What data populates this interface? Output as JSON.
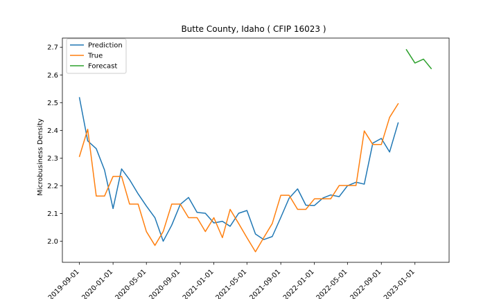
{
  "chart_data": {
    "type": "line",
    "title": "Butte County, Idaho ( CFIP 16023 )",
    "xlabel": "",
    "ylabel": "Microbusiness Density",
    "xlim": [
      "2019-07-01",
      "2023-05-05"
    ],
    "ylim": [
      1.924,
      2.733
    ],
    "x_ticks": [
      "2019-09-01",
      "2020-01-01",
      "2020-05-01",
      "2020-09-01",
      "2021-01-01",
      "2021-05-01",
      "2021-09-01",
      "2022-01-01",
      "2022-05-01",
      "2022-09-01",
      "2023-01-01"
    ],
    "y_ticks": [
      2.0,
      2.1,
      2.2,
      2.3,
      2.4,
      2.5,
      2.6,
      2.7
    ],
    "y_tick_labels": [
      "2.0",
      "2.1",
      "2.2",
      "2.3",
      "2.4",
      "2.5",
      "2.6",
      "2.7"
    ],
    "grid": false,
    "legend_position": "top-left",
    "series": [
      {
        "name": "Prediction",
        "color": "#1f77b4",
        "x": [
          "2019-09-01",
          "2019-10-01",
          "2019-11-01",
          "2019-12-01",
          "2020-01-01",
          "2020-02-01",
          "2020-03-01",
          "2020-04-01",
          "2020-05-01",
          "2020-06-01",
          "2020-07-01",
          "2020-08-01",
          "2020-09-01",
          "2020-10-01",
          "2020-11-01",
          "2020-12-01",
          "2021-01-01",
          "2021-02-01",
          "2021-03-01",
          "2021-04-01",
          "2021-05-01",
          "2021-06-01",
          "2021-07-01",
          "2021-08-01",
          "2021-09-01",
          "2021-10-01",
          "2021-11-01",
          "2021-12-01",
          "2022-01-01",
          "2022-02-01",
          "2022-03-01",
          "2022-04-01",
          "2022-05-01",
          "2022-06-01",
          "2022-07-01",
          "2022-08-01",
          "2022-09-01",
          "2022-10-01",
          "2022-11-01"
        ],
        "values": [
          2.518,
          2.362,
          2.334,
          2.257,
          2.118,
          2.261,
          2.222,
          2.171,
          2.127,
          2.085,
          2.0,
          2.058,
          2.133,
          2.158,
          2.104,
          2.101,
          2.066,
          2.072,
          2.054,
          2.101,
          2.111,
          2.026,
          2.006,
          2.017,
          2.086,
          2.155,
          2.189,
          2.13,
          2.129,
          2.156,
          2.167,
          2.161,
          2.2,
          2.213,
          2.206,
          2.354,
          2.371,
          2.322,
          2.427
        ]
      },
      {
        "name": "True",
        "color": "#ff7f0e",
        "x": [
          "2019-09-01",
          "2019-10-01",
          "2019-11-01",
          "2019-12-01",
          "2020-01-01",
          "2020-02-01",
          "2020-03-01",
          "2020-04-01",
          "2020-05-01",
          "2020-06-01",
          "2020-07-01",
          "2020-08-01",
          "2020-09-01",
          "2020-10-01",
          "2020-11-01",
          "2020-12-01",
          "2021-01-01",
          "2021-02-01",
          "2021-03-01",
          "2021-04-01",
          "2021-05-01",
          "2021-06-01",
          "2021-07-01",
          "2021-08-01",
          "2021-09-01",
          "2021-10-01",
          "2021-11-01",
          "2021-12-01",
          "2022-01-01",
          "2022-02-01",
          "2022-03-01",
          "2022-04-01",
          "2022-05-01",
          "2022-06-01",
          "2022-07-01",
          "2022-08-01",
          "2022-09-01",
          "2022-10-01",
          "2022-11-01"
        ],
        "values": [
          2.306,
          2.404,
          2.163,
          2.163,
          2.234,
          2.234,
          2.134,
          2.134,
          2.035,
          1.985,
          2.035,
          2.134,
          2.134,
          2.085,
          2.085,
          2.035,
          2.085,
          2.013,
          2.115,
          2.064,
          2.013,
          1.962,
          2.013,
          2.064,
          2.166,
          2.166,
          2.115,
          2.115,
          2.153,
          2.153,
          2.153,
          2.201,
          2.201,
          2.201,
          2.398,
          2.349,
          2.349,
          2.447,
          2.496
        ]
      },
      {
        "name": "Forecast",
        "color": "#2ca02c",
        "x": [
          "2022-12-01",
          "2023-01-01",
          "2023-02-01",
          "2023-03-01"
        ],
        "values": [
          2.691,
          2.643,
          2.657,
          2.623
        ]
      }
    ]
  }
}
